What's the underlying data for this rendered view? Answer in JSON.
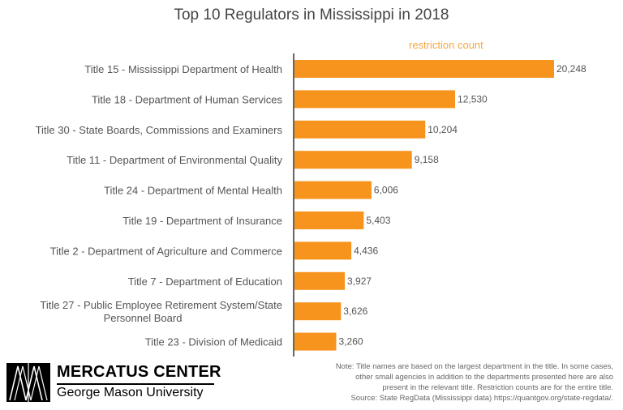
{
  "chart_data": {
    "type": "bar",
    "orientation": "horizontal",
    "title": "Top 10 Regulators in Mississippi in 2018",
    "xlabel": "",
    "ylabel": "",
    "series_name": "restriction count",
    "categories": [
      "Title 15 - Mississippi Department of Health",
      "Title 18 - Department of Human Services",
      "Title 30 - State Boards, Commissions and Examiners",
      "Title 11 - Department of Environmental Quality",
      "Title 24 - Department of Mental Health",
      "Title 19 - Department of Insurance",
      "Title 2 - Department of Agriculture and Commerce",
      "Title 7 - Department of Education",
      "Title 27 - Public Employee Retirement System/State Personnel Board",
      "Title 23 - Division of Medicaid"
    ],
    "category_lines": [
      [
        "Title 15 - Mississippi Department of Health"
      ],
      [
        "Title 18 - Department of Human Services"
      ],
      [
        "Title 30 - State Boards, Commissions and Examiners"
      ],
      [
        "Title 11 - Department of Environmental Quality"
      ],
      [
        "Title 24 - Department of Mental Health"
      ],
      [
        "Title 19 - Department of Insurance"
      ],
      [
        "Title 2 - Department of Agriculture and Commerce"
      ],
      [
        "Title 7 - Department of Education"
      ],
      [
        "Title 27 - Public Employee Retirement System/State",
        "Personnel Board"
      ],
      [
        "Title 23 - Division of Medicaid"
      ]
    ],
    "values": [
      20248,
      12530,
      10204,
      9158,
      6006,
      5403,
      4436,
      3927,
      3626,
      3260
    ],
    "value_labels": [
      "20,248",
      "12,530",
      "10,204",
      "9,158",
      "6,006",
      "5,403",
      "4,436",
      "3,927",
      "3,626",
      "3,260"
    ],
    "xlim": [
      0,
      20248
    ],
    "grid": false,
    "colors": {
      "bar": "#F7941D",
      "series_label": "#F5A742",
      "axis": "#333333"
    }
  },
  "branding": {
    "logo_line1": "MERCATUS CENTER",
    "logo_line2": "George Mason University"
  },
  "note": {
    "lines": [
      "Note: Title names are based on the largest department in the title. In some cases,",
      "other small agencies in addition  to the departments  presented here are also",
      "present in the relevant title. Restriction counts are for the entire title.",
      "Source: State RegData (Mississippi  data) https://quantgov.org/state-regdata/."
    ]
  }
}
